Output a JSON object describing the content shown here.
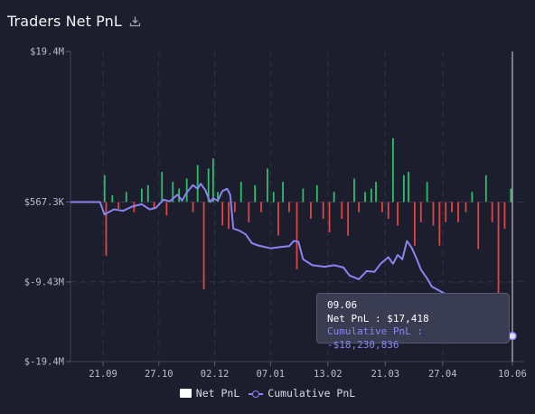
{
  "header": {
    "title": "Traders Net PnL"
  },
  "colors": {
    "positive": "#2ebd6b",
    "negative": "#e04545",
    "cumulative": "#8b84f0",
    "background": "#1c1e2e"
  },
  "icons": {
    "download": "download-icon"
  },
  "legend": {
    "net_label": "Net PnL",
    "cum_label": "Cumulative PnL"
  },
  "tooltip": {
    "date": "09.06",
    "net_pnl": "Net PnL : $17,418",
    "cumulative": "Cumulative PnL : -$18,230,836"
  },
  "chart_data": {
    "type": "bar",
    "title": "Traders Net PnL",
    "y_tick_labels": [
      "$19.4M",
      "$567.3K",
      "$-9.43M",
      "$-19.4M"
    ],
    "y_tick_values": [
      19.4,
      0.567,
      -9.43,
      -19.4
    ],
    "ylim": [
      -19.4,
      19.4
    ],
    "x_tick_labels": [
      "21.09",
      "27.10",
      "02.12",
      "07.01",
      "13.02",
      "21.03",
      "27.04",
      "10.06"
    ],
    "x_tick_days": [
      21,
      57,
      93,
      129,
      166,
      203,
      240,
      285
    ],
    "xlim_days": [
      0,
      292
    ],
    "series": [
      {
        "name": "Net PnL",
        "type": "bar",
        "points": [
          [
            22,
            0.8
          ],
          [
            23,
            -1.6
          ],
          [
            27,
            0.2
          ],
          [
            31,
            -0.2
          ],
          [
            36,
            0.3
          ],
          [
            41,
            -0.3
          ],
          [
            46,
            0.4
          ],
          [
            50,
            0.5
          ],
          [
            54,
            -0.2
          ],
          [
            59,
            0.9
          ],
          [
            62,
            -0.4
          ],
          [
            66,
            0.6
          ],
          [
            70,
            0.4
          ],
          [
            75,
            0.7
          ],
          [
            79,
            -0.3
          ],
          [
            82,
            1.1
          ],
          [
            86,
            -2.6
          ],
          [
            89,
            1.0
          ],
          [
            92,
            1.3
          ],
          [
            95,
            0.3
          ],
          [
            98,
            -0.7
          ],
          [
            102,
            -0.8
          ],
          [
            106,
            -0.3
          ],
          [
            110,
            0.6
          ],
          [
            115,
            -0.6
          ],
          [
            119,
            0.5
          ],
          [
            123,
            -0.3
          ],
          [
            127,
            1.0
          ],
          [
            131,
            0.3
          ],
          [
            134,
            -1.0
          ],
          [
            137,
            0.6
          ],
          [
            141,
            -0.3
          ],
          [
            146,
            -2.0
          ],
          [
            150,
            0.4
          ],
          [
            155,
            -0.5
          ],
          [
            159,
            0.5
          ],
          [
            163,
            -0.5
          ],
          [
            167,
            -0.9
          ],
          [
            170,
            0.3
          ],
          [
            175,
            -0.5
          ],
          [
            179,
            -1.0
          ],
          [
            183,
            0.7
          ],
          [
            186,
            -0.3
          ],
          [
            190,
            0.3
          ],
          [
            194,
            0.4
          ],
          [
            197,
            0.6
          ],
          [
            201,
            -0.3
          ],
          [
            205,
            -0.5
          ],
          [
            208,
            1.9
          ],
          [
            211,
            -0.7
          ],
          [
            215,
            0.8
          ],
          [
            218,
            0.9
          ],
          [
            222,
            -1.3
          ],
          [
            226,
            -0.6
          ],
          [
            230,
            0.6
          ],
          [
            234,
            -0.7
          ],
          [
            238,
            -1.3
          ],
          [
            242,
            -0.6
          ],
          [
            246,
            -0.3
          ],
          [
            250,
            -0.6
          ],
          [
            255,
            -0.3
          ],
          [
            259,
            0.3
          ],
          [
            263,
            -1.4
          ],
          [
            268,
            0.8
          ],
          [
            272,
            -0.6
          ],
          [
            276,
            -3.7
          ],
          [
            280,
            -0.8
          ],
          [
            284,
            0.4
          ]
        ]
      },
      {
        "name": "Cumulative PnL",
        "type": "line",
        "points": [
          [
            0,
            0.0
          ],
          [
            19,
            0.0
          ],
          [
            22,
            -1.7
          ],
          [
            28,
            -1.0
          ],
          [
            34,
            -1.2
          ],
          [
            40,
            -0.6
          ],
          [
            46,
            -0.3
          ],
          [
            51,
            -1.0
          ],
          [
            55,
            -0.8
          ],
          [
            60,
            0.3
          ],
          [
            64,
            0.1
          ],
          [
            69,
            1.0
          ],
          [
            72,
            0.2
          ],
          [
            75,
            1.3
          ],
          [
            79,
            2.3
          ],
          [
            82,
            1.8
          ],
          [
            84,
            2.5
          ],
          [
            87,
            1.6
          ],
          [
            90,
            0.0
          ],
          [
            92,
            0.5
          ],
          [
            95,
            0.2
          ],
          [
            98,
            1.5
          ],
          [
            101,
            1.8
          ],
          [
            103,
            1.0
          ],
          [
            105,
            -3.6
          ],
          [
            109,
            -3.9
          ],
          [
            113,
            -4.4
          ],
          [
            117,
            -5.6
          ],
          [
            121,
            -5.9
          ],
          [
            129,
            -6.3
          ],
          [
            136,
            -6.1
          ],
          [
            141,
            -6.0
          ],
          [
            144,
            -5.3
          ],
          [
            147,
            -5.4
          ],
          [
            150,
            -7.8
          ],
          [
            156,
            -8.6
          ],
          [
            164,
            -8.8
          ],
          [
            170,
            -8.6
          ],
          [
            176,
            -8.9
          ],
          [
            180,
            -10.0
          ],
          [
            186,
            -10.5
          ],
          [
            191,
            -9.4
          ],
          [
            196,
            -9.5
          ],
          [
            200,
            -8.4
          ],
          [
            205,
            -7.5
          ],
          [
            208,
            -8.4
          ],
          [
            211,
            -7.2
          ],
          [
            214,
            -7.8
          ],
          [
            217,
            -5.3
          ],
          [
            220,
            -6.2
          ],
          [
            223,
            -7.6
          ],
          [
            226,
            -9.2
          ],
          [
            230,
            -10.4
          ],
          [
            233,
            -11.5
          ],
          [
            246,
            -13.0
          ],
          [
            257,
            -14.0
          ],
          [
            266,
            -15.2
          ],
          [
            271,
            -16.2
          ],
          [
            276,
            -17.3
          ],
          [
            280,
            -17.9
          ],
          [
            285,
            -18.23
          ]
        ]
      }
    ],
    "highlight": {
      "date": "09.06",
      "day": 285,
      "net_pnl": 17418,
      "cumulative": -18230836
    },
    "grid": true,
    "legend_position": "bottom-center"
  }
}
